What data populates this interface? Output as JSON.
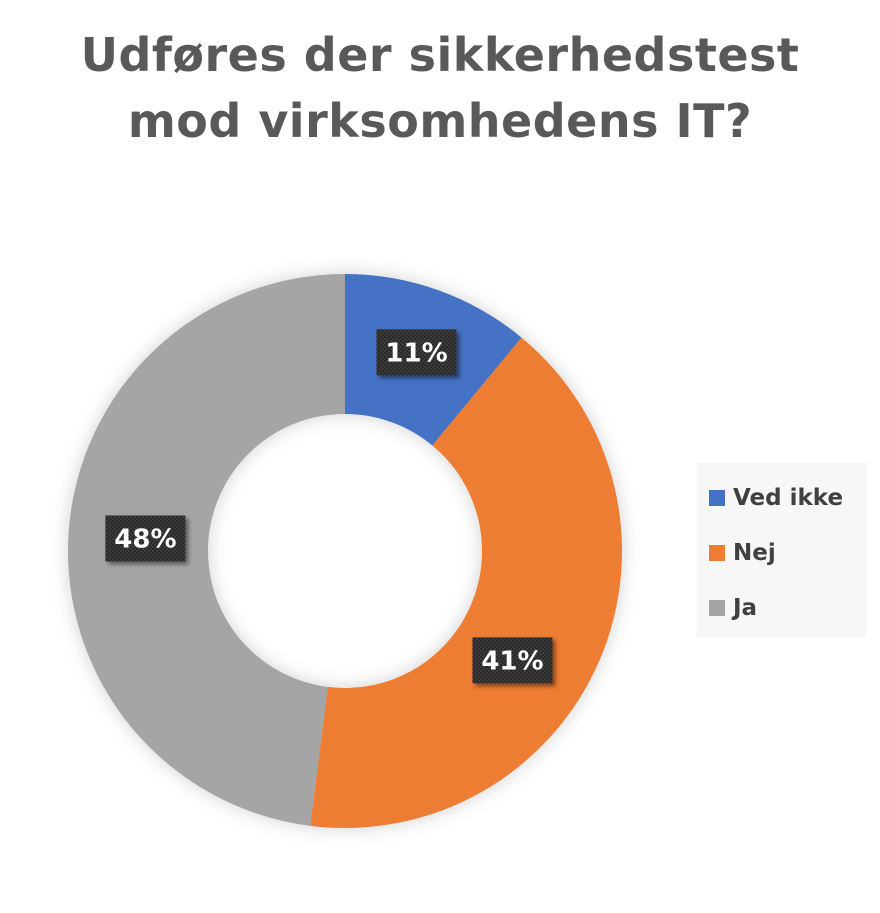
{
  "chart_data": {
    "type": "pie",
    "variant": "donut",
    "title_lines": [
      "Udføres der sikkerhedstest",
      "mod virksomhedens IT?"
    ],
    "categories": [
      "Ved ikke",
      "Nej",
      "Ja"
    ],
    "values": [
      11,
      41,
      48
    ],
    "data_labels": [
      "11%",
      "41%",
      "48%"
    ],
    "colors": [
      "#4472c4",
      "#ed7d31",
      "#a5a5a5"
    ],
    "legend_position": "right"
  }
}
